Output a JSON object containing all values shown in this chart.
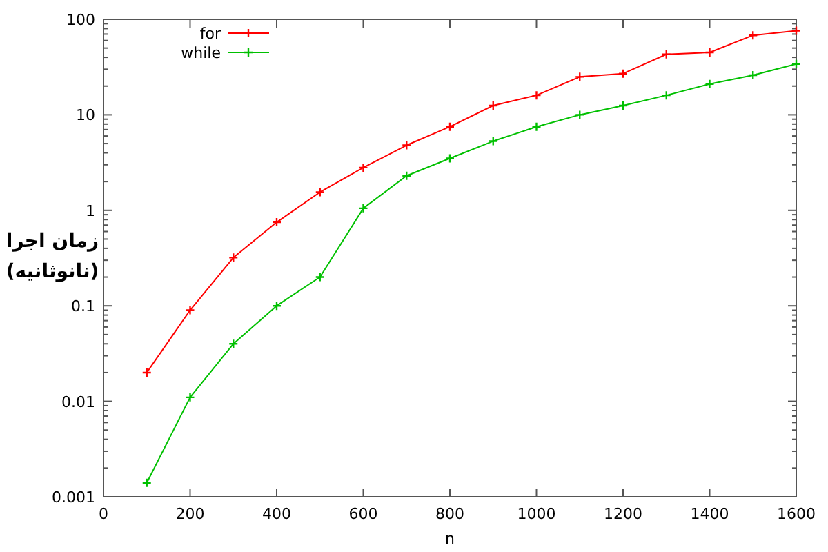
{
  "chart_data": {
    "type": "line",
    "xlabel": "n",
    "ylabel": "زمان اجرا\n(نانوثانیه)",
    "x": [
      100,
      200,
      300,
      400,
      500,
      600,
      700,
      800,
      900,
      1000,
      1100,
      1200,
      1300,
      1400,
      1500,
      1600
    ],
    "series": [
      {
        "name": "for",
        "color": "#ff0000",
        "marker": "cross",
        "values": [
          0.02,
          0.09,
          0.32,
          0.75,
          1.55,
          2.8,
          4.8,
          7.5,
          12.5,
          16,
          25,
          27,
          43,
          45,
          68,
          76
        ]
      },
      {
        "name": "while",
        "color": "#00c000",
        "marker": "cross",
        "values": [
          0.0014,
          0.011,
          0.04,
          0.1,
          0.2,
          1.05,
          2.3,
          3.5,
          5.3,
          7.5,
          10,
          12.5,
          16,
          21,
          26,
          34
        ]
      }
    ],
    "log": "y",
    "xlim": [
      0,
      1600
    ],
    "ylim": [
      0.001,
      100
    ],
    "xticks": [
      0,
      200,
      400,
      600,
      800,
      1000,
      1200,
      1400,
      1600
    ],
    "yticks": [
      0.001,
      {
        "value": 0.002,
        "label": null
      },
      {
        "value": 0.003,
        "label": null
      },
      {
        "value": 0.004,
        "label": null
      },
      {
        "value": 0.005,
        "label": null
      },
      {
        "value": 0.006,
        "label": null
      },
      {
        "value": 0.007,
        "label": null
      },
      {
        "value": 0.008,
        "label": null
      },
      {
        "value": 0.009,
        "label": null
      },
      0.01,
      {
        "value": 0.02,
        "label": null
      },
      {
        "value": 0.03,
        "label": null
      },
      {
        "value": 0.04,
        "label": null
      },
      {
        "value": 0.05,
        "label": null
      },
      {
        "value": 0.06,
        "label": null
      },
      {
        "value": 0.07,
        "label": null
      },
      {
        "value": 0.08,
        "label": null
      },
      {
        "value": 0.09,
        "label": null
      },
      0.1,
      {
        "value": 0.2,
        "label": null
      },
      {
        "value": 0.3,
        "label": null
      },
      {
        "value": 0.4,
        "label": null
      },
      {
        "value": 0.5,
        "label": null
      },
      {
        "value": 0.6,
        "label": null
      },
      {
        "value": 0.7,
        "label": null
      },
      {
        "value": 0.8,
        "label": null
      },
      {
        "value": 0.9,
        "label": null
      },
      1,
      {
        "value": 2,
        "label": null
      },
      {
        "value": 3,
        "label": null
      },
      {
        "value": 4,
        "label": null
      },
      {
        "value": 5,
        "label": null
      },
      {
        "value": 6,
        "label": null
      },
      {
        "value": 7,
        "label": null
      },
      {
        "value": 8,
        "label": null
      },
      {
        "value": 9,
        "label": null
      },
      10,
      {
        "value": 20,
        "label": null
      },
      {
        "value": 30,
        "label": null
      },
      {
        "value": 40,
        "label": null
      },
      {
        "value": 50,
        "label": null
      },
      {
        "value": 60,
        "label": null
      },
      {
        "value": 70,
        "label": null
      },
      {
        "value": 80,
        "label": null
      },
      {
        "value": 90,
        "label": null
      },
      100
    ],
    "legend": "top left",
    "grid": false,
    "line_style": "solid"
  }
}
